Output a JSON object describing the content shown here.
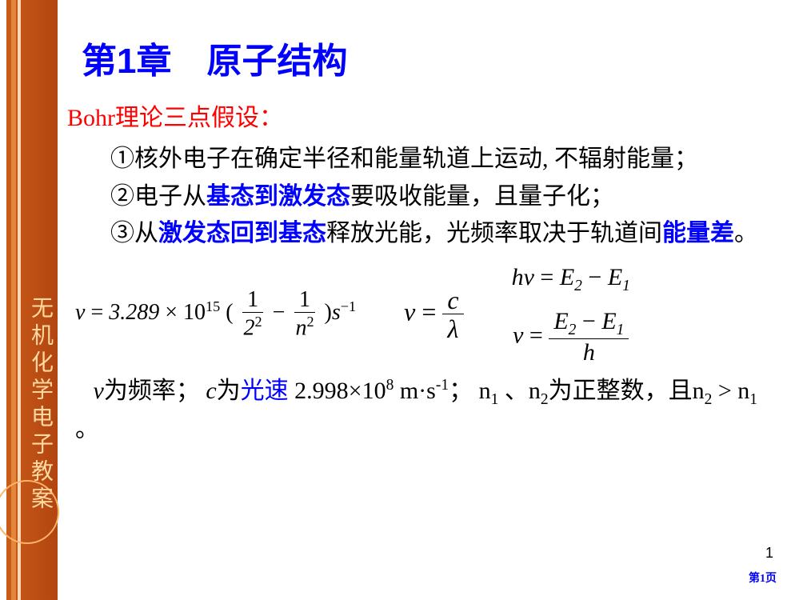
{
  "sidebar": {
    "vertical_label": "无机化学电子教案",
    "bg_gradient_from": "#c95b1a",
    "bg_gradient_to": "#b24510",
    "text_color": "#ffd9a0"
  },
  "chapter_title": "第1章　原子结构",
  "subtitle": "Bohr理论三点假设：",
  "bullets": {
    "b1_pre": "①核外电子在确定半径和能量轨道上运动, 不辐射能量；",
    "b2_a": "②电子从",
    "b2_hl": "基态到激发态",
    "b2_b": "要吸收能量，且量子化；",
    "b3_a": "③从",
    "b3_hl1": "激发态回到基态",
    "b3_b": "释放光能，光频率取决于轨道间",
    "b3_hl2": "能量差",
    "b3_c": "。"
  },
  "equations": {
    "eq1_const": "3.289",
    "eq1_exp": "15",
    "eq1_den1": "2",
    "eq1_den2": "n",
    "eq1_unit": "s",
    "nu": "ν",
    "v": "v",
    "c": "c",
    "lambda": "λ",
    "h": "h",
    "E2": "E",
    "E1": "E",
    "eq_hv": "hν = E₂ − E₁"
  },
  "explain": {
    "t1": "v",
    "t2": "为频率； ",
    "t3": "c",
    "t4": "为",
    "t5": "光速",
    "t6": "  2.998×10",
    "t6e": "8",
    "t7": " m·s",
    "t7e": "-1",
    "t8": "；  n",
    "t8s": "1",
    "t9": " 、n",
    "t9s": "2",
    "t10": "为正整数，且n",
    "t10s": "2",
    "t11": " > n",
    "t11s": "1",
    "t12": " 。"
  },
  "page_num_plain": "1",
  "page_num_label": "第1页",
  "colors": {
    "title": "#0000ff",
    "subtitle": "#ff0000",
    "body": "#000000",
    "highlight": "#0000ff",
    "pagelink": "#0000ff",
    "background": "#ffffff"
  },
  "fontsizes": {
    "title": 44,
    "subtitle": 30,
    "body": 30,
    "equation": 28,
    "pagenum_small": 14,
    "pagenum": 18
  }
}
